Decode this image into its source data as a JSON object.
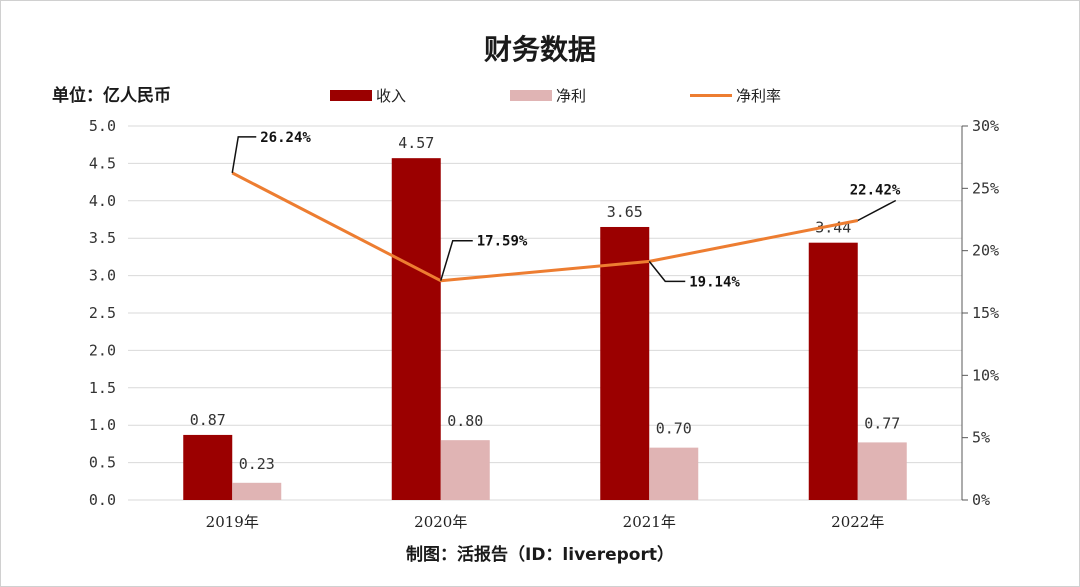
{
  "unit_label": "单位：亿人民币",
  "footer": "制图：活报告（ID：livereport）",
  "colors": {
    "revenue": "#9b0000",
    "net_profit": "#e0b4b4",
    "net_margin": "#ed7d31",
    "grid": "#d9d9d9"
  },
  "chart_data": {
    "type": "bar",
    "title": "财务数据",
    "categories": [
      "2019年",
      "2020年",
      "2021年",
      "2022年"
    ],
    "series": [
      {
        "name": "收入",
        "type": "bar",
        "axis": "left",
        "values": [
          0.87,
          4.57,
          3.65,
          3.44
        ],
        "labels": [
          "0.87",
          "4.57",
          "3.65",
          "3.44"
        ]
      },
      {
        "name": "净利",
        "type": "bar",
        "axis": "left",
        "values": [
          0.23,
          0.8,
          0.7,
          0.77
        ],
        "labels": [
          "0.23",
          "0.80",
          "0.70",
          "0.77"
        ]
      },
      {
        "name": "净利率",
        "type": "line",
        "axis": "right",
        "values": [
          26.24,
          17.59,
          19.14,
          22.42
        ],
        "labels": [
          "26.24%",
          "17.59%",
          "19.14%",
          "22.42%"
        ]
      }
    ],
    "y_left": {
      "lim": [
        0,
        5
      ],
      "ticks": [
        "0.0",
        "0.5",
        "1.0",
        "1.5",
        "2.0",
        "2.5",
        "3.0",
        "3.5",
        "4.0",
        "4.5",
        "5.0"
      ]
    },
    "y_right": {
      "lim": [
        0,
        30
      ],
      "ticks": [
        "0%",
        "5%",
        "10%",
        "15%",
        "20%",
        "25%",
        "30%"
      ]
    },
    "grid": true,
    "legend_position": "top-center"
  }
}
